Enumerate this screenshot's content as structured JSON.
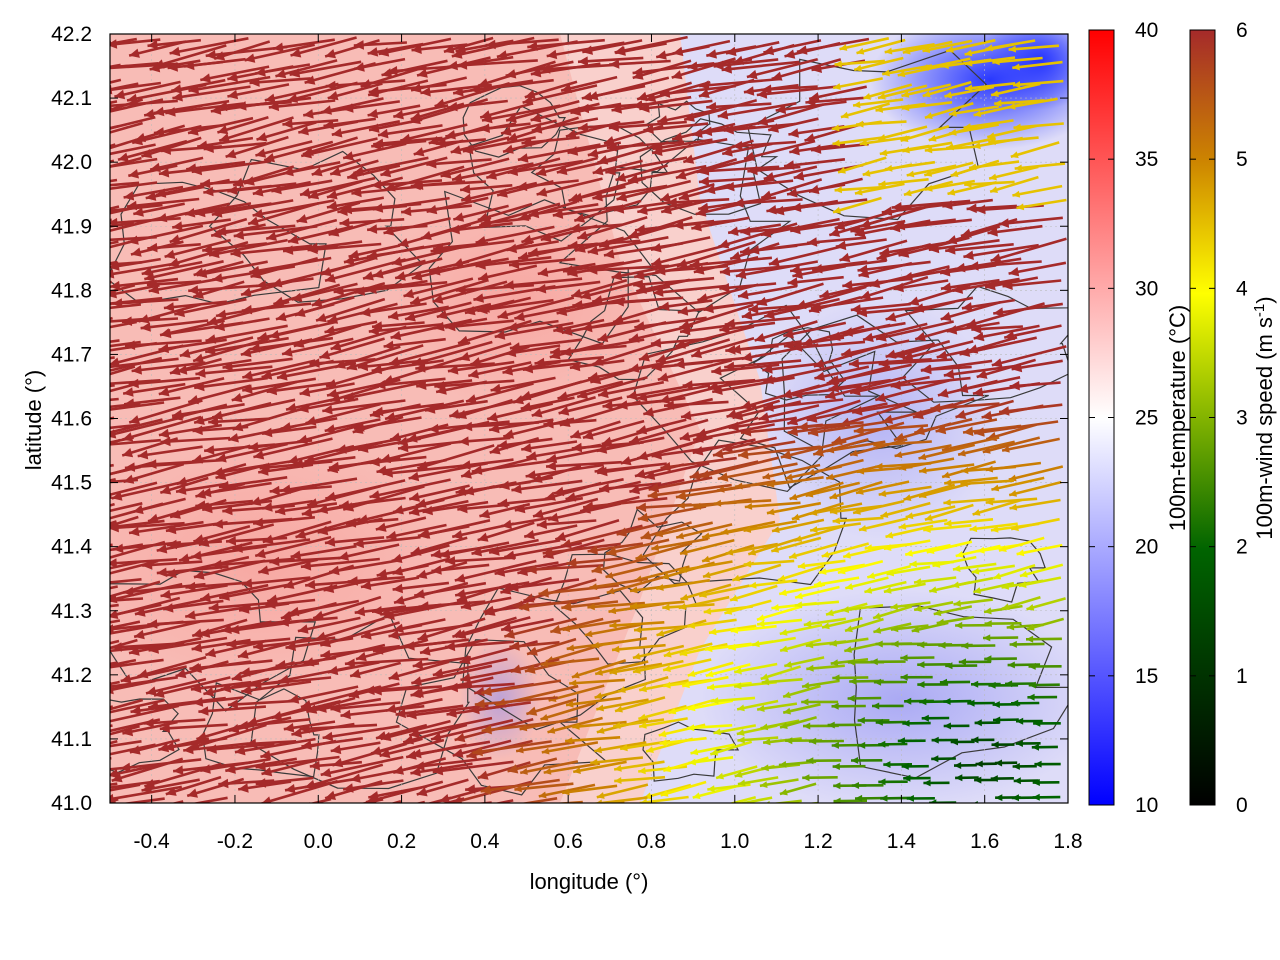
{
  "chart_data": {
    "type": "vector-field",
    "xlabel": "longitude (°)",
    "ylabel": "latitude (°)",
    "xlim": [
      -0.5,
      1.8
    ],
    "ylim": [
      41.0,
      42.2
    ],
    "xticks": [
      "-0.4",
      "-0.2",
      "0.0",
      "0.2",
      "0.4",
      "0.6",
      "0.8",
      "1.0",
      "1.2",
      "1.4",
      "1.6",
      "1.8"
    ],
    "xtick_values": [
      -0.4,
      -0.2,
      0.0,
      0.2,
      0.4,
      0.6,
      0.8,
      1.0,
      1.2,
      1.4,
      1.6,
      1.8
    ],
    "yticks": [
      "41.0",
      "41.1",
      "41.2",
      "41.3",
      "41.4",
      "41.5",
      "41.6",
      "41.7",
      "41.8",
      "41.9",
      "42.0",
      "42.1",
      "42.2"
    ],
    "ytick_values": [
      41.0,
      41.1,
      41.2,
      41.3,
      41.4,
      41.5,
      41.6,
      41.7,
      41.8,
      41.9,
      42.0,
      42.1,
      42.2
    ],
    "grid": true,
    "colorbars": [
      {
        "label": "100m-temperature (°C)",
        "range": [
          10,
          40
        ],
        "ticks": [
          "10",
          "15",
          "20",
          "25",
          "30",
          "35",
          "40"
        ],
        "tick_values": [
          10,
          15,
          20,
          25,
          30,
          35,
          40
        ],
        "colors": [
          "#0000ff",
          "#ffffff",
          "#ff0000"
        ]
      },
      {
        "label": "100m-wind speed (m s",
        "label_sup": "-1",
        "label_end": ")",
        "range": [
          0,
          6
        ],
        "ticks": [
          "0",
          "1",
          "2",
          "3",
          "4",
          "5",
          "6"
        ],
        "tick_values": [
          0,
          1,
          2,
          3,
          4,
          5,
          6
        ],
        "colors": [
          "#000000",
          "#006400",
          "#ffff00",
          "#cd8500",
          "#a52a2a"
        ]
      }
    ],
    "temperature_field": {
      "description_of_regions": "warm west, cool east",
      "warm_core_value": 30,
      "cool_east_value": 19,
      "cold_northeast_value": 12
    },
    "wind_field": {
      "strong_region_speed": 6,
      "weak_southeast_speed": 1.5,
      "direction": "from east-southeast toward west-northwest"
    }
  }
}
